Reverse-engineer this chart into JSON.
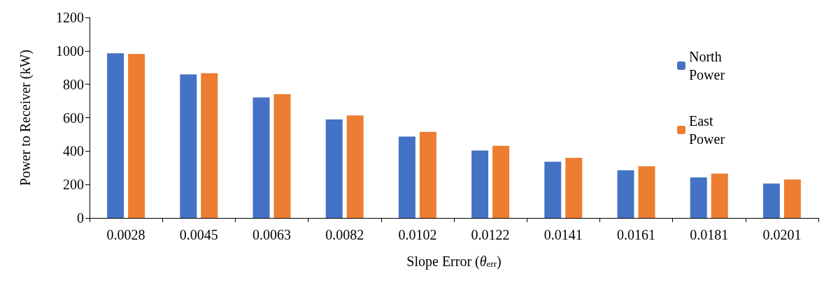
{
  "chart_data": {
    "type": "bar",
    "xlabel": "Slope Error (θ$_{err}$)",
    "ylabel": "Power to Receiver (kW)",
    "categories": [
      "0.0028",
      "0.0045",
      "0.0063",
      "0.0082",
      "0.0102",
      "0.0122",
      "0.0141",
      "0.0161",
      "0.0181",
      "0.0201"
    ],
    "series": [
      {
        "name": "North Power",
        "color": "#4472c4",
        "values": [
          986,
          859,
          721,
          590,
          487,
          404,
          337,
          285,
          242,
          206
        ]
      },
      {
        "name": "East Power",
        "color": "#ed7d31",
        "values": [
          982,
          867,
          741,
          614,
          515,
          432,
          360,
          309,
          265,
          230
        ]
      }
    ],
    "ylim": [
      0,
      1200
    ],
    "yticks": [
      0,
      200,
      400,
      600,
      800,
      1000,
      1200
    ],
    "grid": false,
    "legend": "top right"
  }
}
